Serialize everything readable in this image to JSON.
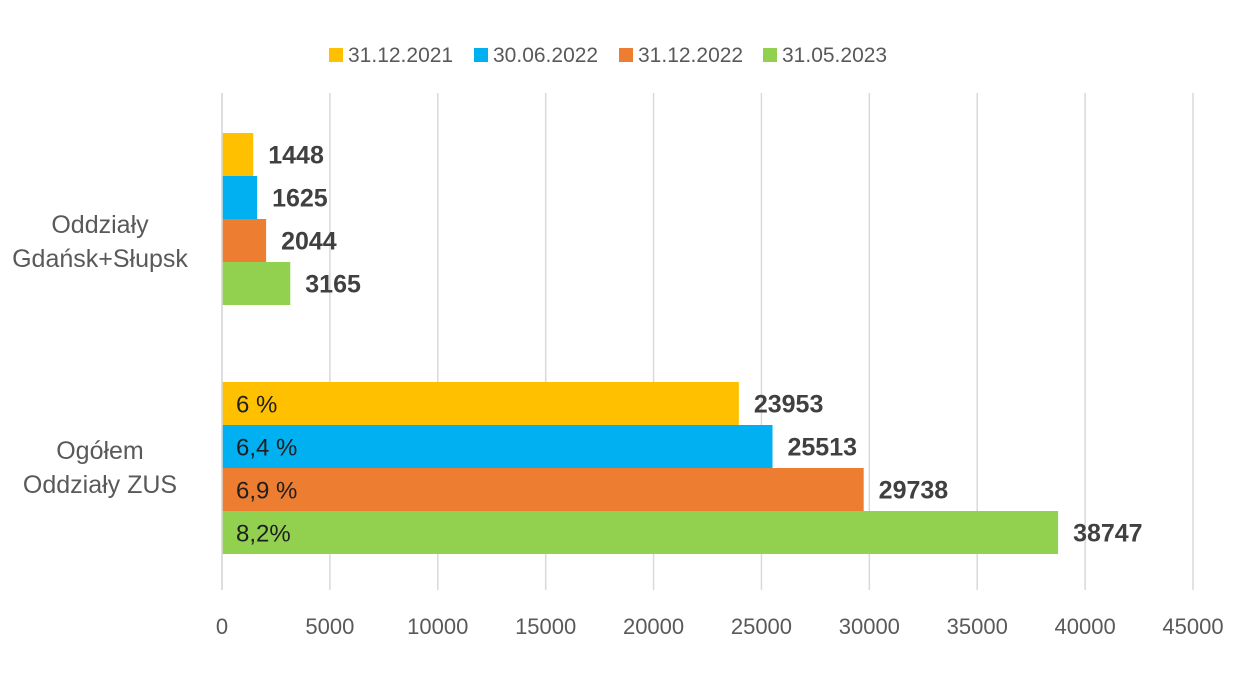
{
  "chart_data": {
    "type": "bar",
    "orientation": "horizontal",
    "categories": [
      "Oddziały\nGdańsk+Słupsk",
      "Ogółem\nOddziały ZUS"
    ],
    "series": [
      {
        "name": "31.12.2021",
        "color": "#FFC000",
        "values": [
          1448,
          23953
        ],
        "inner_labels": [
          "",
          "6 %"
        ]
      },
      {
        "name": "30.06.2022",
        "color": "#00B0F0",
        "values": [
          1625,
          25513
        ],
        "inner_labels": [
          "",
          "6,4 %"
        ]
      },
      {
        "name": "31.12.2022",
        "color": "#ED7D31",
        "values": [
          2044,
          29738
        ],
        "inner_labels": [
          "",
          "6,9 %"
        ]
      },
      {
        "name": "31.05.2023",
        "color": "#92D050",
        "values": [
          3165,
          38747
        ],
        "inner_labels": [
          "",
          "8,2%"
        ]
      }
    ],
    "xlim": [
      0,
      45000
    ],
    "xticks": [
      0,
      5000,
      10000,
      15000,
      20000,
      25000,
      30000,
      35000,
      40000,
      45000
    ],
    "grid": "vertical",
    "legend_position": "top",
    "title": "",
    "xlabel": "",
    "ylabel": ""
  }
}
